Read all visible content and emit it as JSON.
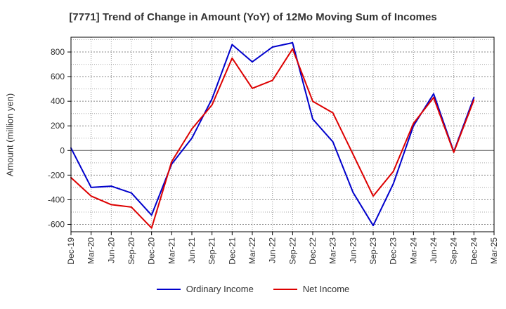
{
  "chart_data": {
    "type": "line",
    "title": "[7771]  Trend of Change in Amount (YoY) of 12Mo Moving Sum of Incomes",
    "ylabel": "Amount (million yen)",
    "xlabel": "",
    "categories": [
      "Dec-19",
      "Mar-20",
      "Jun-20",
      "Sep-20",
      "Dec-20",
      "Mar-21",
      "Jun-21",
      "Sep-21",
      "Dec-21",
      "Mar-22",
      "Jun-22",
      "Sep-22",
      "Dec-22",
      "Mar-23",
      "Jun-23",
      "Sep-23",
      "Dec-23",
      "Mar-24",
      "Jun-24",
      "Sep-24",
      "Dec-24",
      "Mar-25"
    ],
    "ylim": [
      -660,
      920
    ],
    "yticks": [
      -600,
      -400,
      -200,
      0,
      200,
      400,
      600,
      800
    ],
    "grid": true,
    "legend_position": "bottom",
    "series": [
      {
        "name": "Ordinary Income",
        "color": "#0000cc",
        "values": [
          20,
          -300,
          -290,
          -345,
          -525,
          -110,
          100,
          420,
          860,
          720,
          840,
          875,
          255,
          70,
          -340,
          -610,
          -270,
          200,
          460,
          -10,
          430,
          null
        ]
      },
      {
        "name": "Net Income",
        "color": "#dd0000",
        "values": [
          -220,
          -370,
          -440,
          -460,
          -630,
          -90,
          175,
          370,
          750,
          505,
          570,
          825,
          400,
          305,
          -30,
          -370,
          -170,
          220,
          430,
          -15,
          410,
          null
        ]
      }
    ]
  }
}
